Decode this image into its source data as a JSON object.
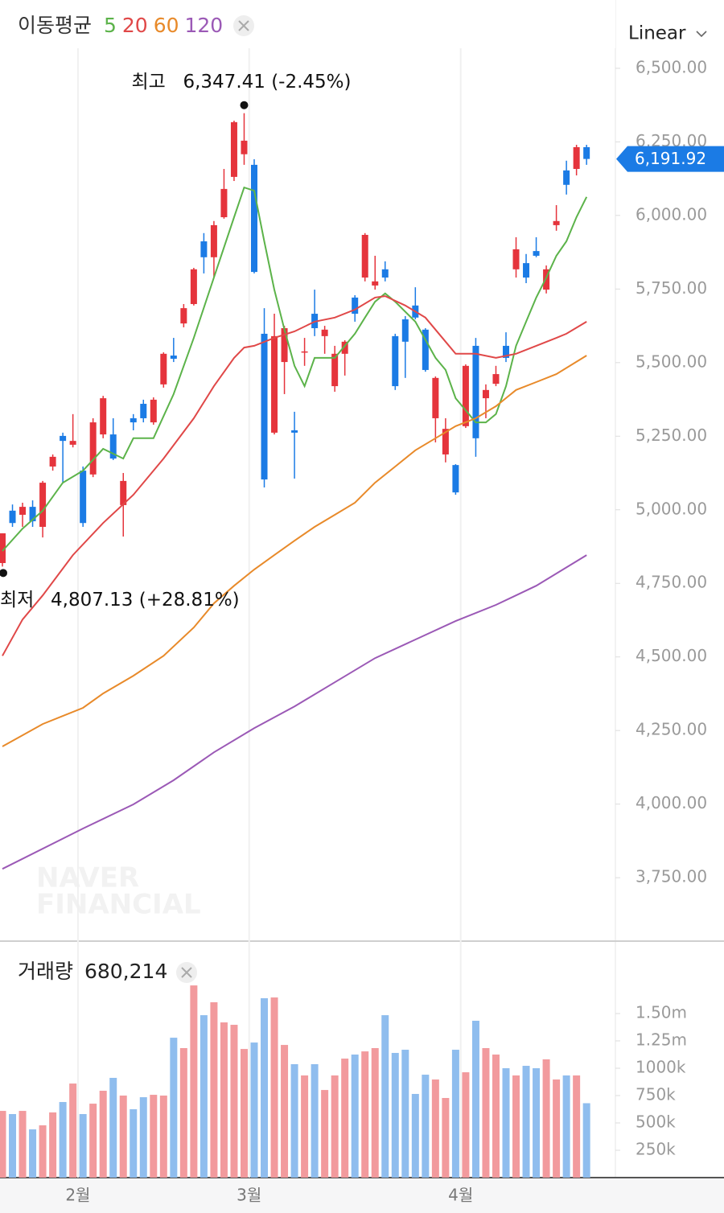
{
  "chart_data": [
    {
      "type": "candlestick",
      "legend_title": "이동평균",
      "scale_mode": "Linear",
      "watermark": [
        "NAVER",
        "FINANCIAL"
      ],
      "up_color": "#e5343c",
      "down_color": "#1b7be5",
      "ylim": [
        3540,
        6568
      ],
      "yticks": [
        {
          "value": 6500,
          "label": "6,500.00"
        },
        {
          "value": 6250,
          "label": "6,250.00"
        },
        {
          "value": 6000,
          "label": "6,000.00"
        },
        {
          "value": 5750,
          "label": "5,750.00"
        },
        {
          "value": 5500,
          "label": "5,500.00"
        },
        {
          "value": 5250,
          "label": "5,250.00"
        },
        {
          "value": 5000,
          "label": "5,000.00"
        },
        {
          "value": 4750,
          "label": "4,750.00"
        },
        {
          "value": 4500,
          "label": "4,500.00"
        },
        {
          "value": 4250,
          "label": "4,250.00"
        },
        {
          "value": 4000,
          "label": "4,000.00"
        },
        {
          "value": 3750,
          "label": "3,750.00"
        }
      ],
      "open": [
        4819,
        4997,
        4983,
        5010,
        4942,
        5147,
        5251,
        5221,
        5133,
        5120,
        5256,
        5256,
        5016,
        5311,
        5360,
        5297,
        5426,
        5524,
        5633,
        5699,
        5912,
        5858,
        5994,
        6131,
        6208,
        6172,
        5598,
        5262,
        5502,
        5270,
        5535,
        5666,
        5590,
        5420,
        5530,
        5721,
        5789,
        5762,
        5817,
        5590,
        5647,
        5694,
        5612,
        5311,
        5188,
        5152,
        5284,
        5557,
        5379,
        5428,
        5557,
        5817,
        5838,
        5879,
        5748,
        5967,
        6153,
        6158,
        6232
      ],
      "high": [
        4920,
        5018,
        5024,
        5032,
        5098,
        5188,
        5262,
        5325,
        5147,
        5311,
        5387,
        5311,
        5125,
        5325,
        5374,
        5382,
        5535,
        5584,
        5699,
        5822,
        5940,
        5981,
        6158,
        6322,
        6347.41,
        6191,
        5685,
        5666,
        5625,
        5333,
        5584,
        5748,
        5625,
        5557,
        5576,
        5729,
        5940,
        5863,
        5844,
        5598,
        5658,
        5756,
        5617,
        5453,
        5311,
        5155,
        5494,
        5584,
        5426,
        5489,
        5603,
        5926,
        5869,
        5926,
        5830,
        6035,
        6186,
        6240,
        6240
      ],
      "low": [
        4807.13,
        4942,
        4942,
        4942,
        4906,
        5133,
        5092,
        5212,
        4942,
        5111,
        5243,
        5169,
        4909,
        5270,
        5297,
        5289,
        5415,
        5502,
        5620,
        5694,
        5803,
        5789,
        5989,
        6117,
        6172,
        5803,
        5076,
        5256,
        5393,
        5106,
        5489,
        5590,
        5530,
        5401,
        5456,
        5639,
        5776,
        5748,
        5776,
        5407,
        5448,
        5647,
        5469,
        5229,
        5161,
        5051,
        5278,
        5180,
        5311,
        5420,
        5502,
        5789,
        5770,
        5858,
        5735,
        5948,
        6071,
        6136,
        6172
      ],
      "close": [
        4920,
        4955,
        5010,
        4961,
        5092,
        5180,
        5234,
        5234,
        4955,
        5297,
        5379,
        5174,
        5098,
        5297,
        5311,
        5374,
        5530,
        5513,
        5685,
        5817,
        5858,
        5967,
        6090,
        6317,
        6254,
        5808,
        5103,
        5590,
        5617,
        5262,
        5538,
        5617,
        5612,
        5530,
        5571,
        5666,
        5934,
        5776,
        5789,
        5420,
        5571,
        5653,
        5475,
        5448,
        5275,
        5059,
        5489,
        5243,
        5407,
        5461,
        5516,
        5885,
        5789,
        5863,
        5817,
        5981,
        6104,
        6232,
        6191.92
      ],
      "last_price_label": "6,191.92",
      "annotations": [
        {
          "label": "최고",
          "text": "6,347.41 (-2.45%)"
        },
        {
          "label": "최저",
          "text": "4,807.13 (+28.81%)"
        }
      ],
      "series": [
        {
          "name": "5",
          "color": "#5cb34a",
          "x": [
            0,
            2,
            4,
            6,
            8,
            10,
            12,
            13,
            15,
            17,
            19,
            21,
            23,
            24,
            25,
            26,
            27,
            28,
            29,
            30,
            31,
            33,
            35,
            36,
            37,
            38,
            39,
            41,
            43,
            44,
            45,
            47,
            48,
            49,
            50,
            51,
            52,
            53,
            54,
            55,
            56,
            57,
            58
          ],
          "values": [
            4860,
            4936,
            4997,
            5092,
            5133,
            5207,
            5174,
            5243,
            5243,
            5393,
            5584,
            5789,
            5994,
            6095,
            6084,
            5912,
            5748,
            5612,
            5489,
            5420,
            5516,
            5516,
            5598,
            5653,
            5707,
            5735,
            5707,
            5639,
            5516,
            5475,
            5379,
            5297,
            5297,
            5325,
            5420,
            5557,
            5639,
            5721,
            5789,
            5863,
            5912,
            5994,
            6063
          ]
        },
        {
          "name": "20",
          "color": "#e04848",
          "x": [
            0,
            2,
            4,
            7,
            10,
            13,
            16,
            19,
            21,
            23,
            24,
            25,
            27,
            29,
            31,
            33,
            35,
            37,
            38,
            40,
            42,
            44,
            45,
            47,
            49,
            51,
            53,
            55,
            56,
            58
          ],
          "values": [
            4504,
            4627,
            4709,
            4846,
            4955,
            5051,
            5174,
            5311,
            5420,
            5516,
            5551,
            5557,
            5584,
            5606,
            5639,
            5653,
            5680,
            5721,
            5726,
            5694,
            5653,
            5571,
            5530,
            5530,
            5516,
            5530,
            5557,
            5584,
            5598,
            5639
          ]
        },
        {
          "name": "60",
          "color": "#e88a2a",
          "x": [
            0,
            4,
            8,
            10,
            13,
            16,
            19,
            21,
            23,
            25,
            27,
            29,
            31,
            33,
            35,
            37,
            39,
            41,
            43,
            45,
            47,
            49,
            51,
            53,
            55,
            58
          ],
          "values": [
            4196,
            4272,
            4327,
            4376,
            4436,
            4504,
            4600,
            4682,
            4742,
            4797,
            4846,
            4895,
            4942,
            4983,
            5024,
            5092,
            5147,
            5202,
            5243,
            5284,
            5311,
            5352,
            5407,
            5434,
            5461,
            5524
          ]
        },
        {
          "name": "120",
          "color": "#9b59b6",
          "x": [
            0,
            8,
            13,
            17,
            21,
            25,
            29,
            33,
            37,
            41,
            45,
            49,
            53,
            58
          ],
          "values": [
            3780,
            3917,
            3999,
            4081,
            4176,
            4258,
            4332,
            4414,
            4496,
            4559,
            4622,
            4677,
            4742,
            4846
          ]
        }
      ]
    },
    {
      "type": "volume",
      "title": "거래량",
      "last_volume_label": "680,214",
      "up_color": "#f29a9d",
      "down_color": "#8fbdee",
      "ylim": [
        0,
        2015000
      ],
      "yticks": [
        {
          "value": 1500000,
          "label": "1.50m"
        },
        {
          "value": 1250000,
          "label": "1.25m"
        },
        {
          "value": 1000000,
          "label": "1000k"
        },
        {
          "value": 750000,
          "label": "750k"
        },
        {
          "value": 500000,
          "label": "500k"
        },
        {
          "value": 250000,
          "label": "250k"
        }
      ],
      "values": [
        610000,
        581000,
        610000,
        441000,
        478000,
        596000,
        691000,
        860000,
        581000,
        676000,
        794000,
        912000,
        750000,
        625000,
        735000,
        757000,
        750000,
        1279000,
        1184000,
        1757000,
        1485000,
        1603000,
        1419000,
        1397000,
        1176000,
        1235000,
        1640000,
        1647000,
        1213000,
        1037000,
        934000,
        1037000,
        801000,
        934000,
        1088000,
        1125000,
        1154000,
        1184000,
        1485000,
        1140000,
        1169000,
        765000,
        941000,
        897000,
        728000,
        1169000,
        963000,
        1434000,
        1184000,
        1125000,
        1000000,
        934000,
        1022000,
        1000000,
        1081000,
        897000,
        934000,
        934000,
        680214
      ],
      "xticks": [
        {
          "value": 7.5,
          "label": "2월"
        },
        {
          "value": 24.5,
          "label": "3월"
        },
        {
          "value": 45.5,
          "label": "4월"
        }
      ]
    }
  ]
}
